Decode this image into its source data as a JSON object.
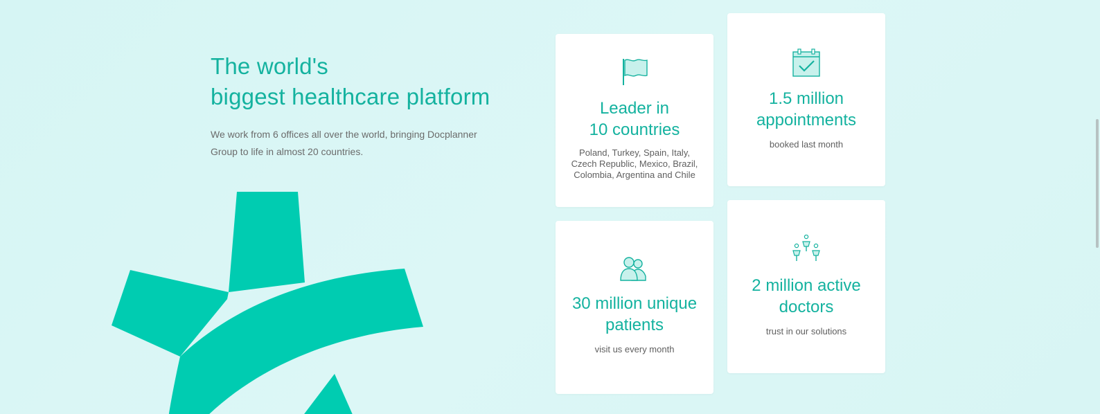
{
  "hero": {
    "title_line1": "The world's",
    "title_line2": "biggest healthcare platform",
    "description": "We work from 6 offices all over the world, bringing Docplanner Group to life in almost 20 countries."
  },
  "stats": [
    {
      "icon": "flag-icon",
      "title_line1": "Leader in",
      "title_line2": "10 countries",
      "description": "Poland, Turkey, Spain, Italy, Czech Republic, Mexico, Brazil, Colombia, Argentina and Chile"
    },
    {
      "icon": "calendar-check-icon",
      "title_line1": "1.5 million",
      "title_line2": "appointments",
      "description": "booked last month"
    },
    {
      "icon": "patients-icon",
      "title_line1": "30 million unique",
      "title_line2": "patients",
      "description": "visit us every month"
    },
    {
      "icon": "doctors-icon",
      "title_line1": "2 million active",
      "title_line2": "doctors",
      "description": "trust in our solutions"
    }
  ],
  "colors": {
    "accent": "#14b29f",
    "logo": "#00ccb1",
    "background": "#d8f6f5",
    "card": "#ffffff",
    "text_muted": "#6b6b6b"
  }
}
